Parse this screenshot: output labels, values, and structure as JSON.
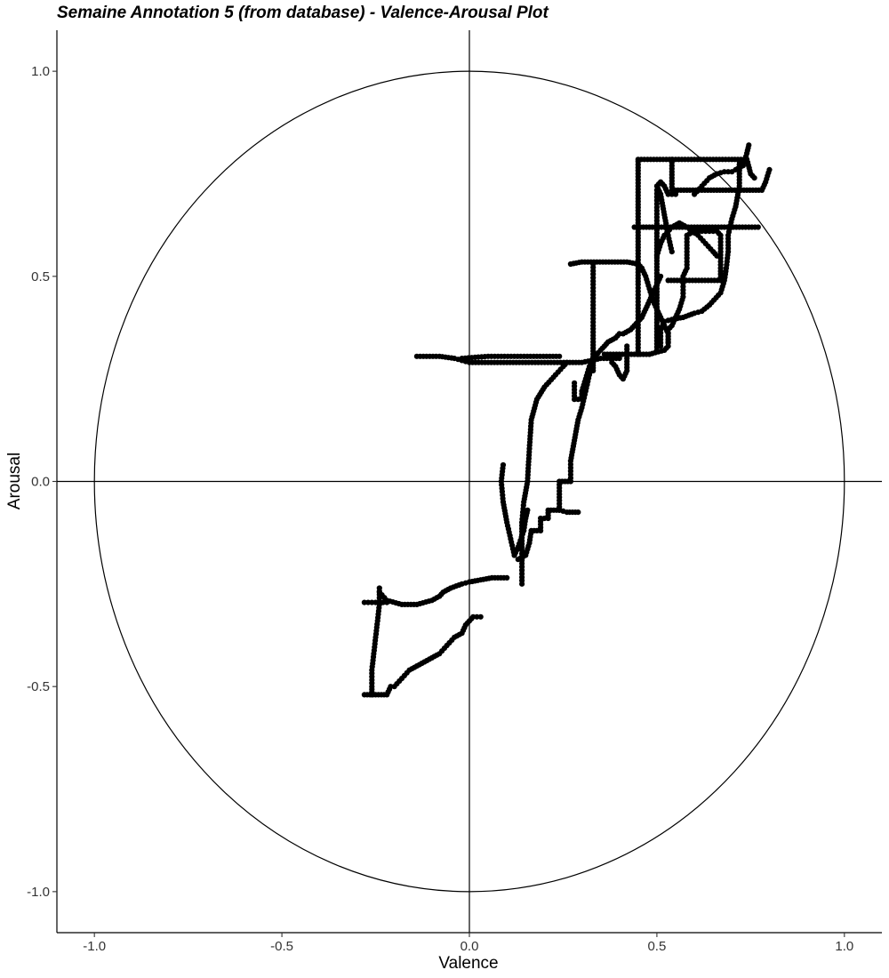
{
  "chart_data": {
    "type": "scatter",
    "title": "Semaine Annotation 5 (from database) - Valence-Arousal Plot",
    "xlabel": "Valence",
    "ylabel": "Arousal",
    "xlim": [
      -1.1,
      1.1
    ],
    "ylim": [
      -1.1,
      1.1
    ],
    "x_ticks": [
      -1.0,
      -0.5,
      0.0,
      0.5,
      1.0
    ],
    "x_tick_labels": [
      "-1.0",
      "-0.5",
      "0.0",
      "0.5",
      "1.0"
    ],
    "y_ticks": [
      -1.0,
      -0.5,
      0.0,
      0.5,
      1.0
    ],
    "y_tick_labels": [
      "-1.0",
      "-0.5",
      "0.0",
      "0.5",
      "1.0"
    ],
    "grid": false,
    "reference_lines": {
      "horizontal": 0.0,
      "vertical": 0.0
    },
    "reference_circle_radius": 1.0,
    "point_color": "#000000",
    "traces": [
      [
        [
          -0.14,
          0.305
        ],
        [
          -0.08,
          0.305
        ],
        [
          -0.04,
          0.3
        ],
        [
          -0.02,
          0.295
        ],
        [
          0.0,
          0.29
        ],
        [
          0.05,
          0.29
        ],
        [
          0.15,
          0.29
        ],
        [
          0.26,
          0.29
        ],
        [
          0.3,
          0.29
        ],
        [
          0.35,
          0.3
        ],
        [
          0.4,
          0.3
        ]
      ],
      [
        [
          -0.02,
          0.3
        ],
        [
          0.05,
          0.305
        ],
        [
          0.12,
          0.305
        ],
        [
          0.18,
          0.305
        ],
        [
          0.24,
          0.305
        ]
      ],
      [
        [
          0.26,
          0.29
        ],
        [
          0.25,
          0.28
        ],
        [
          0.23,
          0.26
        ],
        [
          0.2,
          0.23
        ],
        [
          0.18,
          0.2
        ],
        [
          0.165,
          0.15
        ],
        [
          0.16,
          0.08
        ],
        [
          0.155,
          0.0
        ],
        [
          0.145,
          -0.05
        ],
        [
          0.14,
          -0.1
        ],
        [
          0.14,
          -0.16
        ],
        [
          0.14,
          -0.2
        ],
        [
          0.14,
          -0.25
        ]
      ],
      [
        [
          0.09,
          0.04
        ],
        [
          0.085,
          0.0
        ],
        [
          0.09,
          -0.05
        ],
        [
          0.1,
          -0.1
        ],
        [
          0.11,
          -0.14
        ],
        [
          0.12,
          -0.18
        ]
      ],
      [
        [
          0.12,
          -0.18
        ],
        [
          0.13,
          -0.16
        ],
        [
          0.145,
          -0.12
        ],
        [
          0.15,
          -0.09
        ],
        [
          0.155,
          -0.07
        ]
      ],
      [
        [
          0.13,
          -0.19
        ],
        [
          0.15,
          -0.18
        ],
        [
          0.16,
          -0.15
        ],
        [
          0.165,
          -0.12
        ],
        [
          0.18,
          -0.12
        ],
        [
          0.19,
          -0.12
        ],
        [
          0.19,
          -0.09
        ],
        [
          0.21,
          -0.09
        ],
        [
          0.21,
          -0.07
        ],
        [
          0.24,
          -0.07
        ],
        [
          0.24,
          0.0
        ],
        [
          0.27,
          0.0
        ],
        [
          0.27,
          0.05
        ],
        [
          0.28,
          0.1
        ],
        [
          0.29,
          0.15
        ],
        [
          0.3,
          0.18
        ],
        [
          0.31,
          0.22
        ],
        [
          0.32,
          0.26
        ],
        [
          0.33,
          0.29
        ],
        [
          0.34,
          0.31
        ]
      ],
      [
        [
          0.24,
          -0.07
        ],
        [
          0.26,
          -0.075
        ],
        [
          0.29,
          -0.075
        ]
      ],
      [
        [
          0.28,
          0.24
        ],
        [
          0.28,
          0.2
        ],
        [
          0.3,
          0.2
        ],
        [
          0.3,
          0.22
        ],
        [
          0.31,
          0.25
        ],
        [
          0.32,
          0.28
        ],
        [
          0.33,
          0.3
        ],
        [
          0.35,
          0.32
        ],
        [
          0.36,
          0.33
        ],
        [
          0.37,
          0.34
        ],
        [
          0.39,
          0.35
        ],
        [
          0.4,
          0.36
        ],
        [
          0.41,
          0.36
        ],
        [
          0.43,
          0.37
        ],
        [
          0.44,
          0.38
        ],
        [
          0.45,
          0.39
        ],
        [
          0.46,
          0.4
        ],
        [
          0.47,
          0.42
        ],
        [
          0.48,
          0.44
        ],
        [
          0.49,
          0.46
        ],
        [
          0.5,
          0.48
        ],
        [
          0.51,
          0.5
        ]
      ],
      [
        [
          0.36,
          0.31
        ],
        [
          0.4,
          0.31
        ],
        [
          0.44,
          0.31
        ],
        [
          0.48,
          0.31
        ],
        [
          0.52,
          0.32
        ],
        [
          0.53,
          0.33
        ],
        [
          0.53,
          0.37
        ],
        [
          0.54,
          0.38
        ],
        [
          0.55,
          0.4
        ],
        [
          0.56,
          0.42
        ],
        [
          0.57,
          0.45
        ],
        [
          0.57,
          0.5
        ],
        [
          0.58,
          0.52
        ],
        [
          0.58,
          0.56
        ],
        [
          0.58,
          0.6
        ],
        [
          0.6,
          0.61
        ],
        [
          0.62,
          0.61
        ],
        [
          0.64,
          0.61
        ],
        [
          0.66,
          0.61
        ],
        [
          0.67,
          0.6
        ],
        [
          0.67,
          0.56
        ],
        [
          0.67,
          0.52
        ],
        [
          0.67,
          0.49
        ],
        [
          0.62,
          0.49
        ],
        [
          0.57,
          0.49
        ],
        [
          0.53,
          0.49
        ]
      ],
      [
        [
          0.27,
          0.53
        ],
        [
          0.3,
          0.535
        ],
        [
          0.34,
          0.535
        ],
        [
          0.38,
          0.535
        ],
        [
          0.42,
          0.535
        ],
        [
          0.45,
          0.53
        ],
        [
          0.46,
          0.52
        ],
        [
          0.47,
          0.5
        ],
        [
          0.48,
          0.47
        ],
        [
          0.49,
          0.44
        ],
        [
          0.5,
          0.42
        ],
        [
          0.51,
          0.4
        ],
        [
          0.52,
          0.38
        ],
        [
          0.53,
          0.36
        ],
        [
          0.53,
          0.34
        ]
      ],
      [
        [
          0.33,
          0.53
        ],
        [
          0.33,
          0.48
        ],
        [
          0.33,
          0.43
        ],
        [
          0.33,
          0.38
        ],
        [
          0.33,
          0.34
        ],
        [
          0.33,
          0.31
        ],
        [
          0.33,
          0.29
        ],
        [
          0.33,
          0.27
        ]
      ],
      [
        [
          0.5,
          0.32
        ],
        [
          0.5,
          0.38
        ],
        [
          0.5,
          0.44
        ],
        [
          0.5,
          0.5
        ],
        [
          0.5,
          0.56
        ],
        [
          0.5,
          0.62
        ],
        [
          0.5,
          0.66
        ],
        [
          0.5,
          0.71
        ]
      ],
      [
        [
          0.44,
          0.62
        ],
        [
          0.48,
          0.62
        ],
        [
          0.52,
          0.62
        ],
        [
          0.56,
          0.62
        ],
        [
          0.6,
          0.62
        ],
        [
          0.64,
          0.62
        ],
        [
          0.68,
          0.62
        ],
        [
          0.72,
          0.62
        ],
        [
          0.77,
          0.62
        ]
      ],
      [
        [
          0.45,
          0.785
        ],
        [
          0.5,
          0.785
        ],
        [
          0.55,
          0.785
        ],
        [
          0.6,
          0.785
        ],
        [
          0.65,
          0.785
        ],
        [
          0.7,
          0.785
        ],
        [
          0.74,
          0.785
        ],
        [
          0.75,
          0.75
        ],
        [
          0.76,
          0.74
        ]
      ],
      [
        [
          0.45,
          0.78
        ],
        [
          0.45,
          0.72
        ],
        [
          0.45,
          0.66
        ],
        [
          0.45,
          0.6
        ],
        [
          0.45,
          0.54
        ],
        [
          0.45,
          0.48
        ],
        [
          0.45,
          0.43
        ],
        [
          0.45,
          0.39
        ],
        [
          0.45,
          0.35
        ],
        [
          0.45,
          0.31
        ]
      ],
      [
        [
          0.54,
          0.785
        ],
        [
          0.54,
          0.74
        ],
        [
          0.54,
          0.71
        ],
        [
          0.58,
          0.71
        ],
        [
          0.62,
          0.71
        ],
        [
          0.66,
          0.71
        ],
        [
          0.7,
          0.71
        ],
        [
          0.74,
          0.71
        ],
        [
          0.78,
          0.71
        ],
        [
          0.79,
          0.73
        ],
        [
          0.8,
          0.76
        ]
      ],
      [
        [
          0.6,
          0.7
        ],
        [
          0.62,
          0.72
        ],
        [
          0.64,
          0.74
        ],
        [
          0.66,
          0.75
        ],
        [
          0.68,
          0.755
        ],
        [
          0.7,
          0.755
        ],
        [
          0.71,
          0.76
        ],
        [
          0.73,
          0.77
        ],
        [
          0.74,
          0.8
        ],
        [
          0.745,
          0.82
        ]
      ],
      [
        [
          0.54,
          0.56
        ],
        [
          0.53,
          0.6
        ],
        [
          0.52,
          0.65
        ],
        [
          0.51,
          0.7
        ],
        [
          0.5,
          0.72
        ],
        [
          0.51,
          0.73
        ],
        [
          0.52,
          0.72
        ],
        [
          0.53,
          0.7
        ],
        [
          0.55,
          0.7
        ]
      ],
      [
        [
          0.72,
          0.78
        ],
        [
          0.72,
          0.72
        ],
        [
          0.71,
          0.67
        ],
        [
          0.7,
          0.64
        ],
        [
          0.69,
          0.6
        ],
        [
          0.69,
          0.56
        ],
        [
          0.685,
          0.52
        ],
        [
          0.68,
          0.49
        ],
        [
          0.67,
          0.46
        ],
        [
          0.64,
          0.43
        ],
        [
          0.62,
          0.415
        ],
        [
          0.6,
          0.41
        ],
        [
          0.57,
          0.4
        ],
        [
          0.54,
          0.395
        ],
        [
          0.52,
          0.39
        ],
        [
          0.51,
          0.37
        ],
        [
          0.51,
          0.33
        ]
      ],
      [
        [
          0.5,
          0.55
        ],
        [
          0.51,
          0.58
        ],
        [
          0.52,
          0.6
        ],
        [
          0.54,
          0.62
        ],
        [
          0.56,
          0.63
        ],
        [
          0.58,
          0.62
        ],
        [
          0.61,
          0.6
        ],
        [
          0.63,
          0.58
        ],
        [
          0.65,
          0.56
        ],
        [
          0.66,
          0.55
        ]
      ],
      [
        [
          0.42,
          0.33
        ],
        [
          0.42,
          0.3
        ],
        [
          0.42,
          0.27
        ],
        [
          0.41,
          0.25
        ],
        [
          0.4,
          0.26
        ],
        [
          0.39,
          0.28
        ],
        [
          0.38,
          0.29
        ]
      ],
      [
        [
          -0.24,
          -0.27
        ],
        [
          -0.22,
          -0.29
        ],
        [
          -0.18,
          -0.3
        ],
        [
          -0.14,
          -0.3
        ],
        [
          -0.1,
          -0.29
        ],
        [
          -0.08,
          -0.28
        ],
        [
          -0.07,
          -0.27
        ],
        [
          -0.05,
          -0.26
        ],
        [
          -0.02,
          -0.25
        ],
        [
          0.0,
          -0.245
        ],
        [
          0.03,
          -0.24
        ],
        [
          0.06,
          -0.235
        ],
        [
          0.1,
          -0.235
        ]
      ],
      [
        [
          -0.28,
          -0.295
        ],
        [
          -0.26,
          -0.295
        ],
        [
          -0.24,
          -0.295
        ],
        [
          -0.22,
          -0.295
        ]
      ],
      [
        [
          -0.24,
          -0.26
        ],
        [
          -0.24,
          -0.3
        ],
        [
          -0.245,
          -0.34
        ],
        [
          -0.25,
          -0.38
        ],
        [
          -0.255,
          -0.42
        ],
        [
          -0.26,
          -0.46
        ],
        [
          -0.26,
          -0.5
        ],
        [
          -0.26,
          -0.52
        ]
      ],
      [
        [
          -0.28,
          -0.52
        ],
        [
          -0.25,
          -0.52
        ],
        [
          -0.22,
          -0.52
        ],
        [
          -0.21,
          -0.5
        ],
        [
          -0.2,
          -0.5
        ],
        [
          -0.18,
          -0.48
        ],
        [
          -0.16,
          -0.46
        ],
        [
          -0.14,
          -0.45
        ],
        [
          -0.12,
          -0.44
        ],
        [
          -0.1,
          -0.43
        ],
        [
          -0.08,
          -0.42
        ],
        [
          -0.06,
          -0.4
        ],
        [
          -0.04,
          -0.38
        ],
        [
          -0.02,
          -0.37
        ],
        [
          -0.01,
          -0.35
        ],
        [
          0.0,
          -0.34
        ],
        [
          0.01,
          -0.33
        ],
        [
          0.03,
          -0.33
        ]
      ]
    ]
  }
}
